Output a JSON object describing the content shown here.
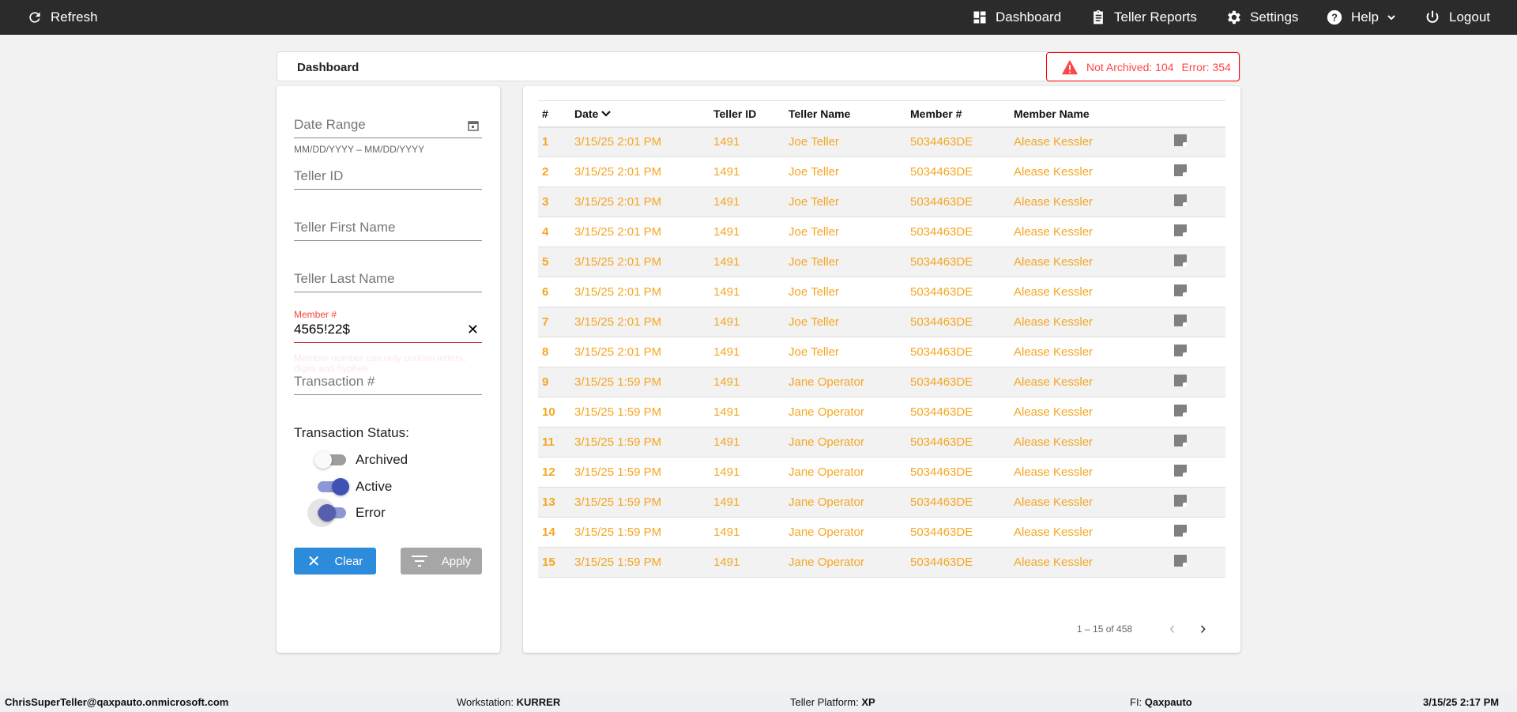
{
  "topbar": {
    "refresh": "Refresh",
    "nav": [
      {
        "label": "Dashboard",
        "icon": "dashboard-icon"
      },
      {
        "label": "Teller Reports",
        "icon": "clipboard-icon"
      },
      {
        "label": "Settings",
        "icon": "gear-icon"
      },
      {
        "label": "Help",
        "icon": "help-icon"
      },
      {
        "label": "Logout",
        "icon": "power-icon"
      }
    ]
  },
  "header": {
    "title": "Dashboard",
    "alert": {
      "not_archived": "Not Archived: 104",
      "error": "Error: 354",
      "color": "#ff0000"
    }
  },
  "filters": {
    "date_range": {
      "label": "Date Range",
      "hint": "MM/DD/YYYY – MM/DD/YYYY"
    },
    "teller_id": "Teller ID",
    "teller_first": "Teller First Name",
    "teller_last": "Teller Last Name",
    "member": {
      "label": "Member #",
      "value": "4565!22$",
      "error": "Member number can only contain letters, digits and hyphen."
    },
    "transaction": "Transaction #",
    "status_label": "Transaction Status:",
    "toggles": [
      {
        "label": "Archived",
        "checked": false
      },
      {
        "label": "Active",
        "checked": true
      },
      {
        "label": "Error",
        "checked": true,
        "focused": true
      }
    ],
    "clear": "Clear",
    "apply": "Apply"
  },
  "table": {
    "columns": [
      "#",
      "Date",
      "Teller ID",
      "Teller Name",
      "Member #",
      "Member Name"
    ],
    "rows": [
      [
        "1",
        "3/15/25 2:01 PM",
        "1491",
        "Joe Teller",
        "5034463DE",
        "Alease Kessler"
      ],
      [
        "2",
        "3/15/25 2:01 PM",
        "1491",
        "Joe Teller",
        "5034463DE",
        "Alease Kessler"
      ],
      [
        "3",
        "3/15/25 2:01 PM",
        "1491",
        "Joe Teller",
        "5034463DE",
        "Alease Kessler"
      ],
      [
        "4",
        "3/15/25 2:01 PM",
        "1491",
        "Joe Teller",
        "5034463DE",
        "Alease Kessler"
      ],
      [
        "5",
        "3/15/25 2:01 PM",
        "1491",
        "Joe Teller",
        "5034463DE",
        "Alease Kessler"
      ],
      [
        "6",
        "3/15/25 2:01 PM",
        "1491",
        "Joe Teller",
        "5034463DE",
        "Alease Kessler"
      ],
      [
        "7",
        "3/15/25 2:01 PM",
        "1491",
        "Joe Teller",
        "5034463DE",
        "Alease Kessler"
      ],
      [
        "8",
        "3/15/25 2:01 PM",
        "1491",
        "Joe Teller",
        "5034463DE",
        "Alease Kessler"
      ],
      [
        "9",
        "3/15/25 1:59 PM",
        "1491",
        "Jane Operator",
        "5034463DE",
        "Alease Kessler"
      ],
      [
        "10",
        "3/15/25 1:59 PM",
        "1491",
        "Jane Operator",
        "5034463DE",
        "Alease Kessler"
      ],
      [
        "11",
        "3/15/25 1:59 PM",
        "1491",
        "Jane Operator",
        "5034463DE",
        "Alease Kessler"
      ],
      [
        "12",
        "3/15/25 1:59 PM",
        "1491",
        "Jane Operator",
        "5034463DE",
        "Alease Kessler"
      ],
      [
        "13",
        "3/15/25 1:59 PM",
        "1491",
        "Jane Operator",
        "5034463DE",
        "Alease Kessler"
      ],
      [
        "14",
        "3/15/25 1:59 PM",
        "1491",
        "Jane Operator",
        "5034463DE",
        "Alease Kessler"
      ],
      [
        "15",
        "3/15/25 1:59 PM",
        "1491",
        "Jane Operator",
        "5034463DE",
        "Alease Kessler"
      ]
    ],
    "row_color": "#f5a623",
    "pagination": "1 – 15 of 458"
  },
  "footer": {
    "user": "ChrisSuperTeller@qaxpauto.onmicrosoft.com",
    "workstation_label": "Workstation: ",
    "workstation": "KURRER",
    "platform_label": "Teller Platform: ",
    "platform": "XP",
    "fi_label": "FI: ",
    "fi": "Qaxpauto",
    "datetime": "3/15/25 2:17 PM"
  }
}
